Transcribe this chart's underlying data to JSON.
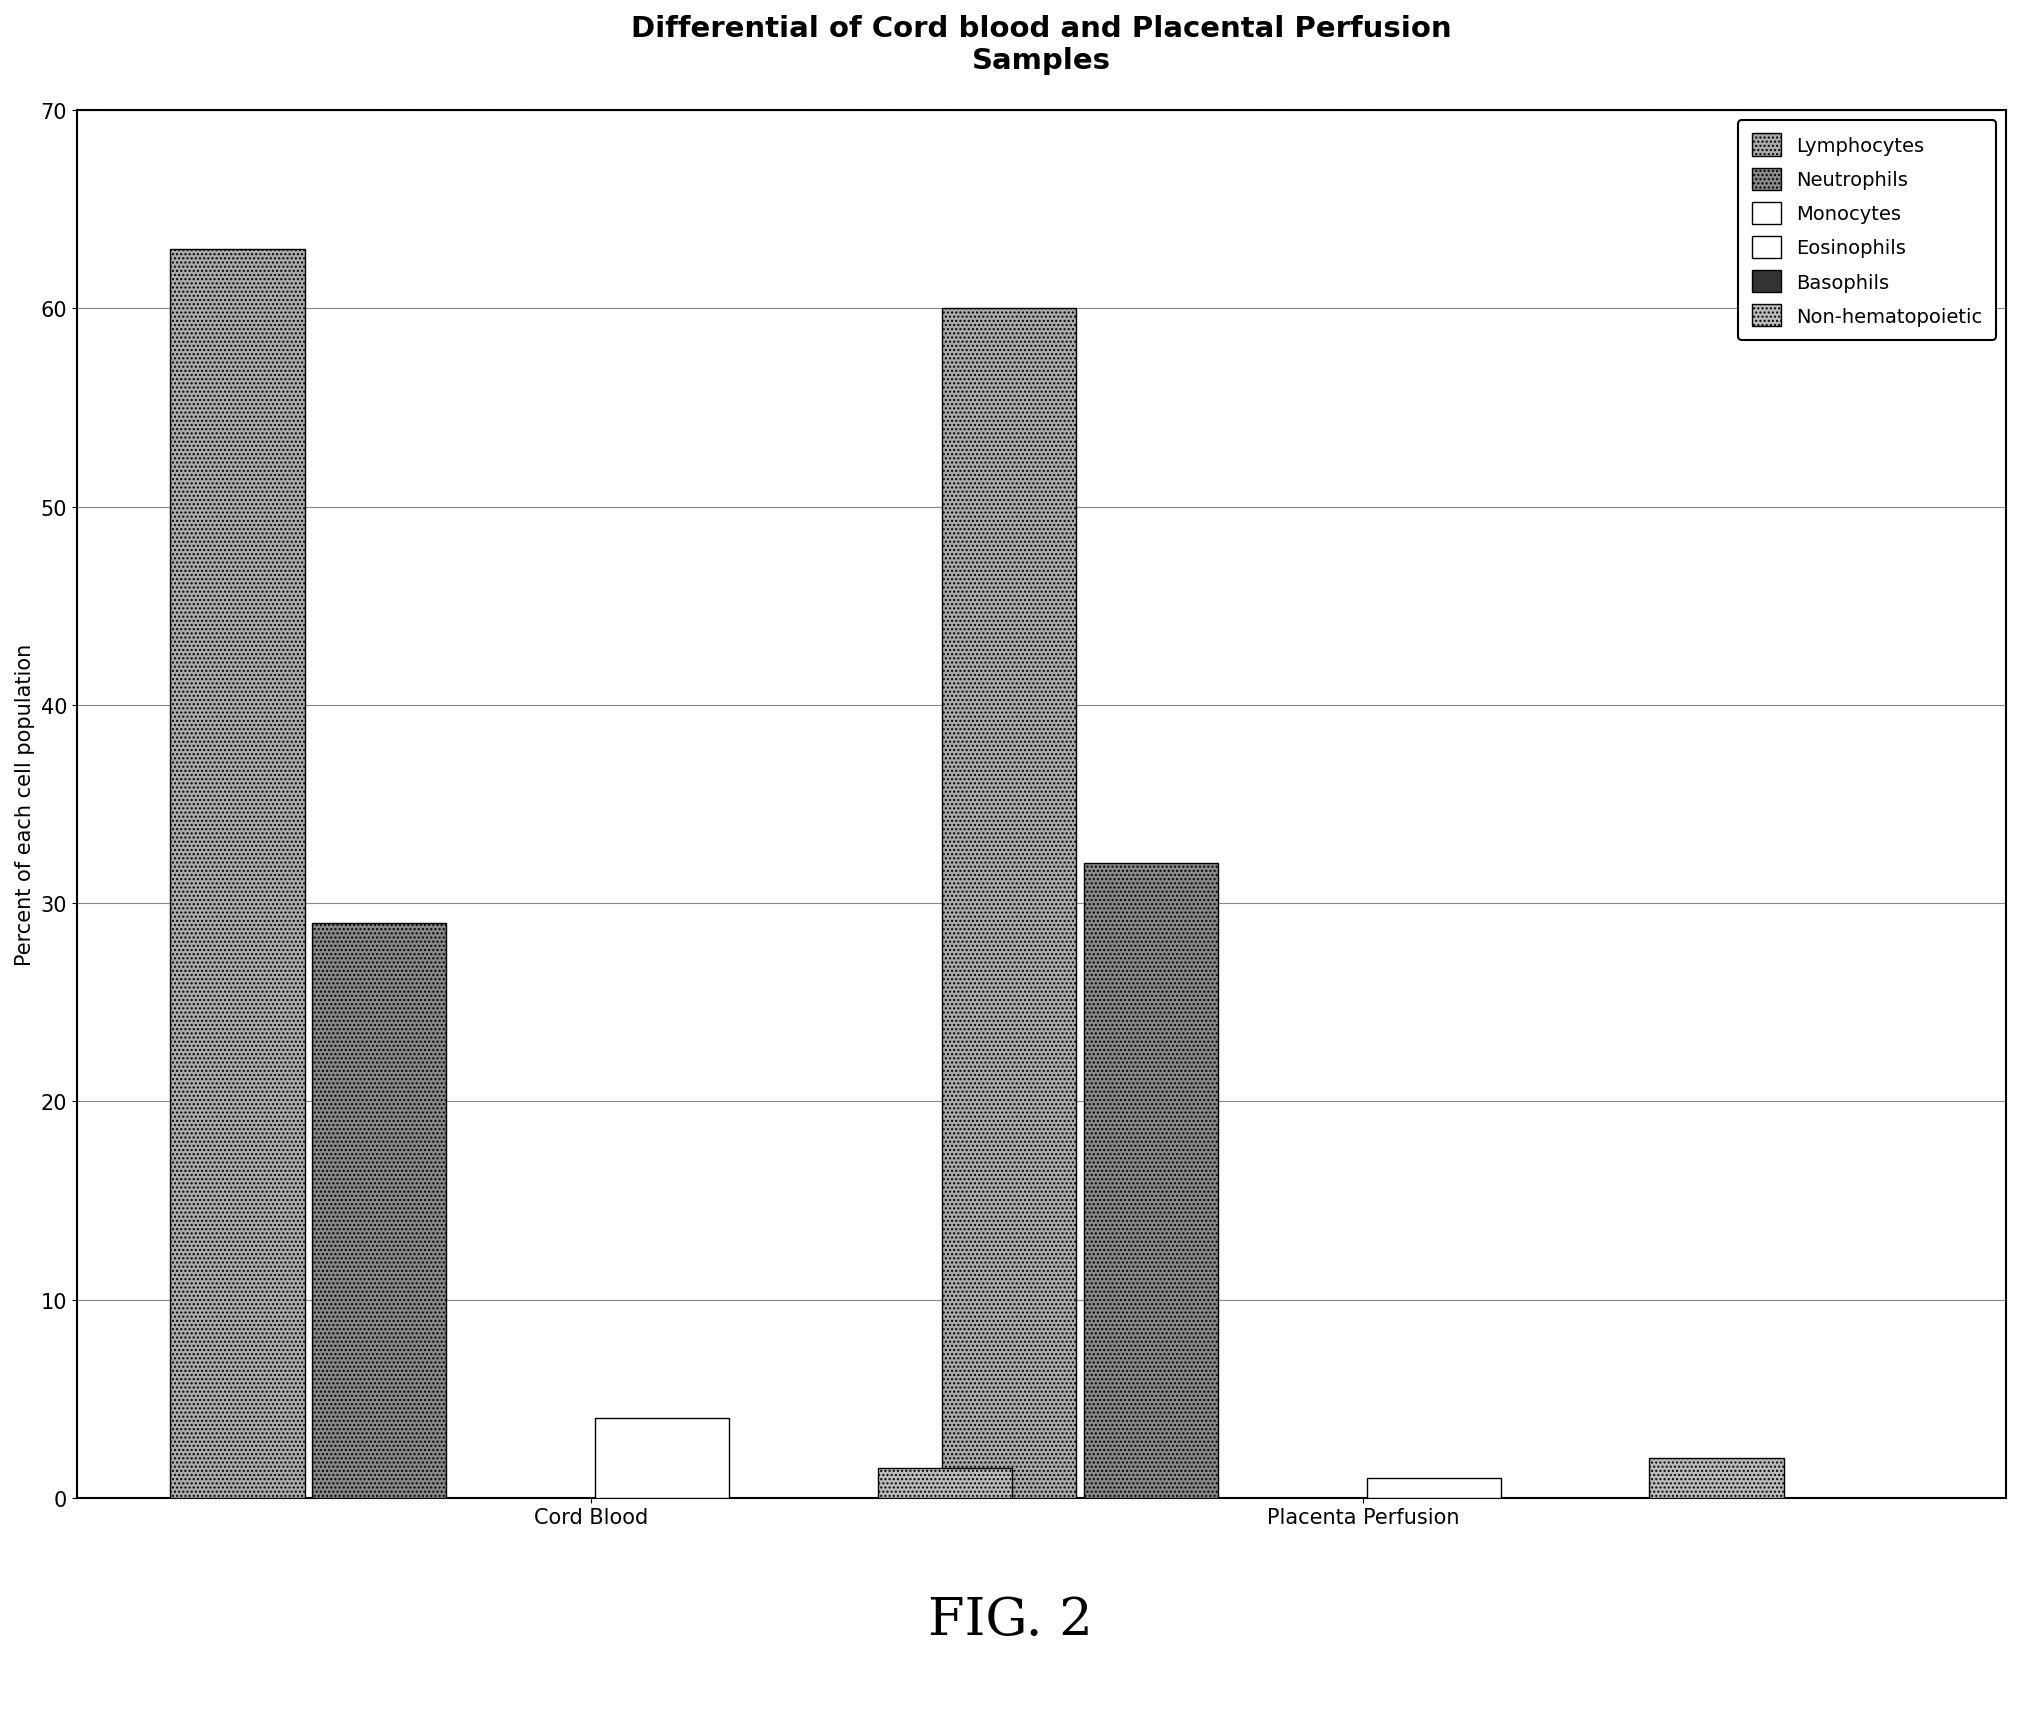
{
  "title": "Differential of Cord blood and Placental Perfusion\nSamples",
  "ylabel": "Percent of each cell population",
  "groups": [
    "Cord Blood",
    "Placenta Perfusion"
  ],
  "categories": [
    "Lymphocytes",
    "Neutrophils",
    "Monocytes",
    "Eosinophils",
    "Basophils",
    "Non-hematopoietic"
  ],
  "values": {
    "Cord Blood": [
      63,
      29,
      0,
      4,
      0,
      1.5
    ],
    "Placenta Perfusion": [
      60,
      32,
      0,
      1,
      0,
      2
    ]
  },
  "ylim": [
    0,
    70
  ],
  "yticks": [
    0,
    10,
    20,
    30,
    40,
    50,
    60,
    70
  ],
  "background_color": "#ffffff",
  "title_fontsize": 21,
  "label_fontsize": 15,
  "tick_fontsize": 15,
  "legend_fontsize": 14,
  "fig_caption": "FIG. 2",
  "fig_caption_fontsize": 38,
  "group_positions": [
    1.5,
    4.5
  ],
  "bar_facecolors": [
    "#b8b8b8",
    "#999999",
    "#ffffff",
    "#ffffff",
    "#333333",
    "#cccccc"
  ],
  "bar_hatches": [
    "",
    "",
    "",
    "",
    "",
    ""
  ],
  "bar_edgecolors": [
    "#000000",
    "#000000",
    "#000000",
    "#000000",
    "#000000",
    "#000000"
  ]
}
